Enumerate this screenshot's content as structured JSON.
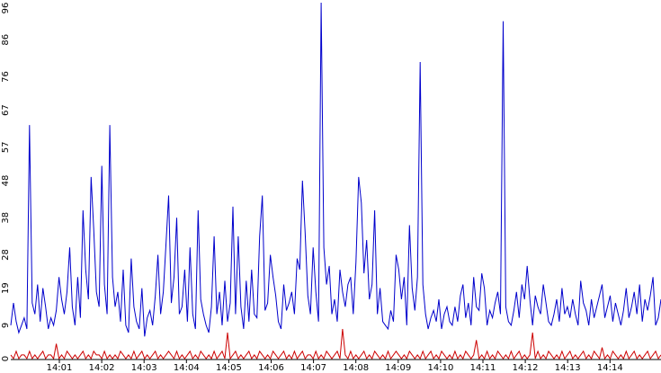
{
  "chart_data": {
    "type": "line",
    "title": "",
    "xlabel": "",
    "ylabel": "",
    "ylim": [
      0,
      96
    ],
    "yticks": [
      0,
      9,
      19,
      28,
      38,
      48,
      57,
      67,
      76,
      86,
      96
    ],
    "xticks": [
      "14:01",
      "14:02",
      "14:03",
      "14:04",
      "14:05",
      "14:06",
      "14:07",
      "14:08",
      "14:09",
      "14:10",
      "14:11",
      "14:12",
      "14:13",
      "14:14"
    ],
    "grid": false,
    "legend": "none",
    "sample_count": 240,
    "series": [
      {
        "color": "#0000cc",
        "values": [
          9,
          15,
          10,
          7,
          9,
          11,
          8,
          63,
          15,
          12,
          20,
          10,
          19,
          14,
          8,
          11,
          9,
          13,
          22,
          16,
          12,
          18,
          30,
          14,
          9,
          22,
          11,
          40,
          24,
          16,
          49,
          35,
          18,
          14,
          52,
          20,
          12,
          63,
          22,
          14,
          18,
          10,
          24,
          9,
          7,
          27,
          14,
          10,
          8,
          19,
          6,
          11,
          13,
          9,
          17,
          28,
          12,
          18,
          31,
          44,
          15,
          22,
          38,
          12,
          14,
          24,
          10,
          30,
          12,
          8,
          40,
          16,
          12,
          9,
          7,
          14,
          33,
          12,
          18,
          9,
          21,
          10,
          15,
          41,
          12,
          33,
          14,
          8,
          21,
          10,
          24,
          12,
          11,
          33,
          44,
          13,
          15,
          28,
          22,
          17,
          10,
          8,
          20,
          13,
          15,
          18,
          12,
          27,
          24,
          48,
          34,
          17,
          12,
          30,
          18,
          10,
          96,
          30,
          20,
          25,
          12,
          16,
          10,
          24,
          18,
          14,
          20,
          22,
          12,
          26,
          49,
          42,
          23,
          32,
          16,
          20,
          40,
          12,
          19,
          10,
          9,
          8,
          13,
          10,
          28,
          24,
          16,
          22,
          9,
          36,
          19,
          13,
          22,
          80,
          20,
          12,
          8,
          11,
          13,
          10,
          16,
          8,
          12,
          14,
          10,
          9,
          14,
          10,
          17,
          20,
          11,
          15,
          9,
          22,
          14,
          13,
          23,
          19,
          9,
          13,
          11,
          15,
          18,
          12,
          91,
          14,
          10,
          9,
          13,
          18,
          11,
          20,
          16,
          25,
          16,
          9,
          17,
          14,
          12,
          20,
          15,
          10,
          9,
          12,
          16,
          10,
          19,
          12,
          14,
          11,
          16,
          12,
          9,
          21,
          15,
          13,
          9,
          16,
          11,
          14,
          17,
          20,
          11,
          14,
          17,
          10,
          15,
          12,
          9,
          13,
          19,
          11,
          14,
          18,
          12,
          20,
          10,
          16,
          13,
          17,
          22,
          9,
          11,
          16
        ]
      },
      {
        "color": "#cc0000",
        "values": [
          1,
          0,
          2,
          0,
          1,
          1,
          0,
          2,
          0,
          1,
          0,
          1,
          2,
          0,
          1,
          1,
          0,
          4,
          0,
          1,
          0,
          2,
          1,
          0,
          1,
          0,
          1,
          2,
          0,
          1,
          0,
          2,
          1,
          1,
          0,
          2,
          0,
          1,
          0,
          1,
          0,
          2,
          1,
          0,
          1,
          0,
          2,
          0,
          1,
          2,
          0,
          1,
          0,
          1,
          2,
          0,
          1,
          0,
          1,
          2,
          1,
          0,
          2,
          0,
          1,
          0,
          1,
          2,
          0,
          1,
          0,
          2,
          1,
          0,
          1,
          0,
          2,
          0,
          1,
          2,
          0,
          7,
          0,
          1,
          2,
          0,
          1,
          0,
          1,
          2,
          0,
          1,
          0,
          2,
          1,
          0,
          1,
          0,
          2,
          1,
          0,
          1,
          2,
          0,
          1,
          0,
          2,
          0,
          1,
          2,
          0,
          1,
          1,
          0,
          2,
          0,
          1,
          0,
          2,
          1,
          0,
          1,
          2,
          0,
          8,
          1,
          0,
          2,
          0,
          1,
          0,
          1,
          2,
          0,
          1,
          0,
          2,
          1,
          0,
          1,
          0,
          2,
          0,
          1,
          2,
          1,
          0,
          1,
          0,
          2,
          1,
          0,
          1,
          0,
          2,
          0,
          1,
          2,
          0,
          1,
          0,
          2,
          1,
          0,
          1,
          0,
          2,
          0,
          1,
          0,
          2,
          1,
          0,
          1,
          5,
          0,
          1,
          0,
          2,
          0,
          1,
          0,
          2,
          1,
          0,
          1,
          0,
          2,
          0,
          1,
          2,
          0,
          1,
          0,
          1,
          7,
          0,
          2,
          0,
          1,
          0,
          2,
          1,
          0,
          1,
          0,
          2,
          0,
          1,
          2,
          0,
          1,
          0,
          1,
          2,
          0,
          1,
          0,
          2,
          1,
          0,
          3,
          0,
          1,
          0,
          2,
          1,
          0,
          1,
          0,
          2,
          0,
          1,
          2,
          0,
          1,
          0,
          1,
          2,
          0,
          1,
          2,
          0,
          1
        ]
      }
    ]
  }
}
